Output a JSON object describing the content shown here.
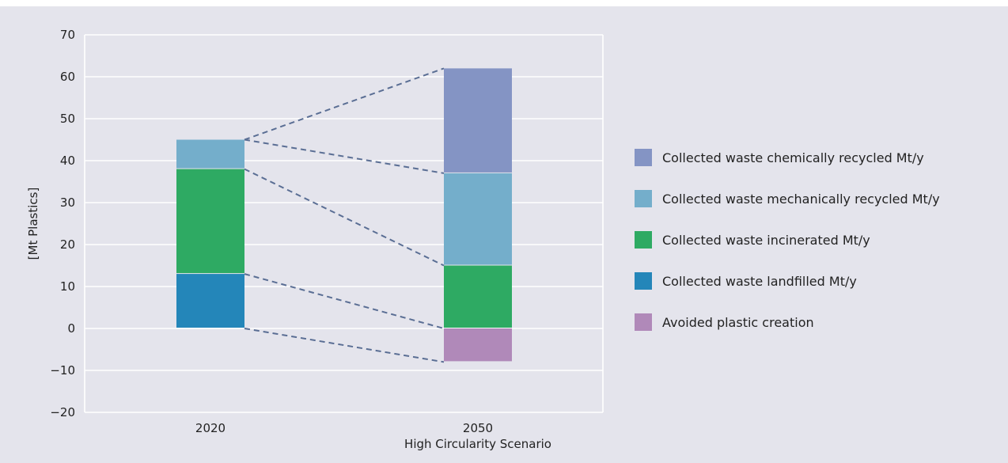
{
  "chart_data": {
    "type": "bar",
    "stacked": true,
    "categories": [
      "2020",
      "2050"
    ],
    "category_sublabels": [
      "",
      "High Circularity Scenario"
    ],
    "title": "",
    "xlabel": "",
    "ylabel": "[Mt Plastics]",
    "ylim": [
      -20,
      70
    ],
    "yticks": [
      -20,
      -10,
      0,
      10,
      20,
      30,
      40,
      50,
      60,
      70
    ],
    "ytick_labels": [
      "−20",
      "−10",
      "0",
      "10",
      "20",
      "30",
      "40",
      "50",
      "60",
      "70"
    ],
    "grid": true,
    "legend_position": "right",
    "series": [
      {
        "name": "Collected waste landfilled Mt/y",
        "color": "#2486b9",
        "values": [
          13,
          0
        ]
      },
      {
        "name": "Collected waste incinerated Mt/y",
        "color": "#2eaa63",
        "values": [
          25,
          15
        ]
      },
      {
        "name": "Collected waste mechanically recycled Mt/y",
        "color": "#74aecb",
        "values": [
          7,
          22
        ]
      },
      {
        "name": "Collected waste chemically recycled Mt/y",
        "color": "#8494c4",
        "values": [
          0,
          25
        ]
      },
      {
        "name": "Avoided plastic creation",
        "color": "#b089b9",
        "values": [
          0,
          -8
        ]
      }
    ],
    "legend_order": [
      3,
      2,
      1,
      0,
      4
    ],
    "connector_color": "#5a6e94"
  }
}
